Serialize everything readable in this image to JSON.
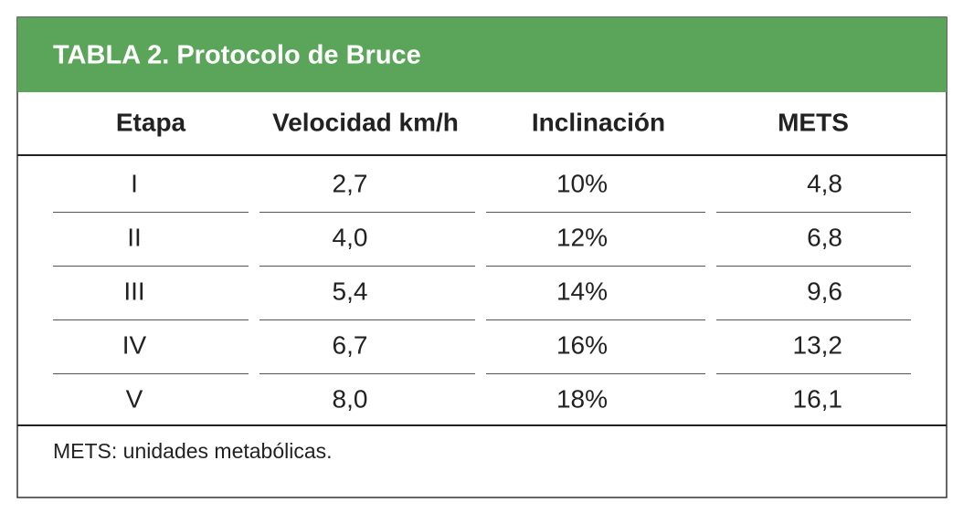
{
  "title": "TABLA 2. Protocolo de Bruce",
  "table": {
    "header": [
      "Etapa",
      "Velocidad km/h",
      "Inclinación",
      "METS"
    ],
    "rows": [
      [
        "I",
        "2,7",
        "10%",
        "4,8"
      ],
      [
        "II",
        "4,0",
        "12%",
        "6,8"
      ],
      [
        "III",
        "5,4",
        "14%",
        "9,6"
      ],
      [
        "IV",
        "6,7",
        "16%",
        "13,2"
      ],
      [
        "V",
        "8,0",
        "18%",
        "16,1"
      ]
    ]
  },
  "footnote": "METS: unidades metabólicas."
}
